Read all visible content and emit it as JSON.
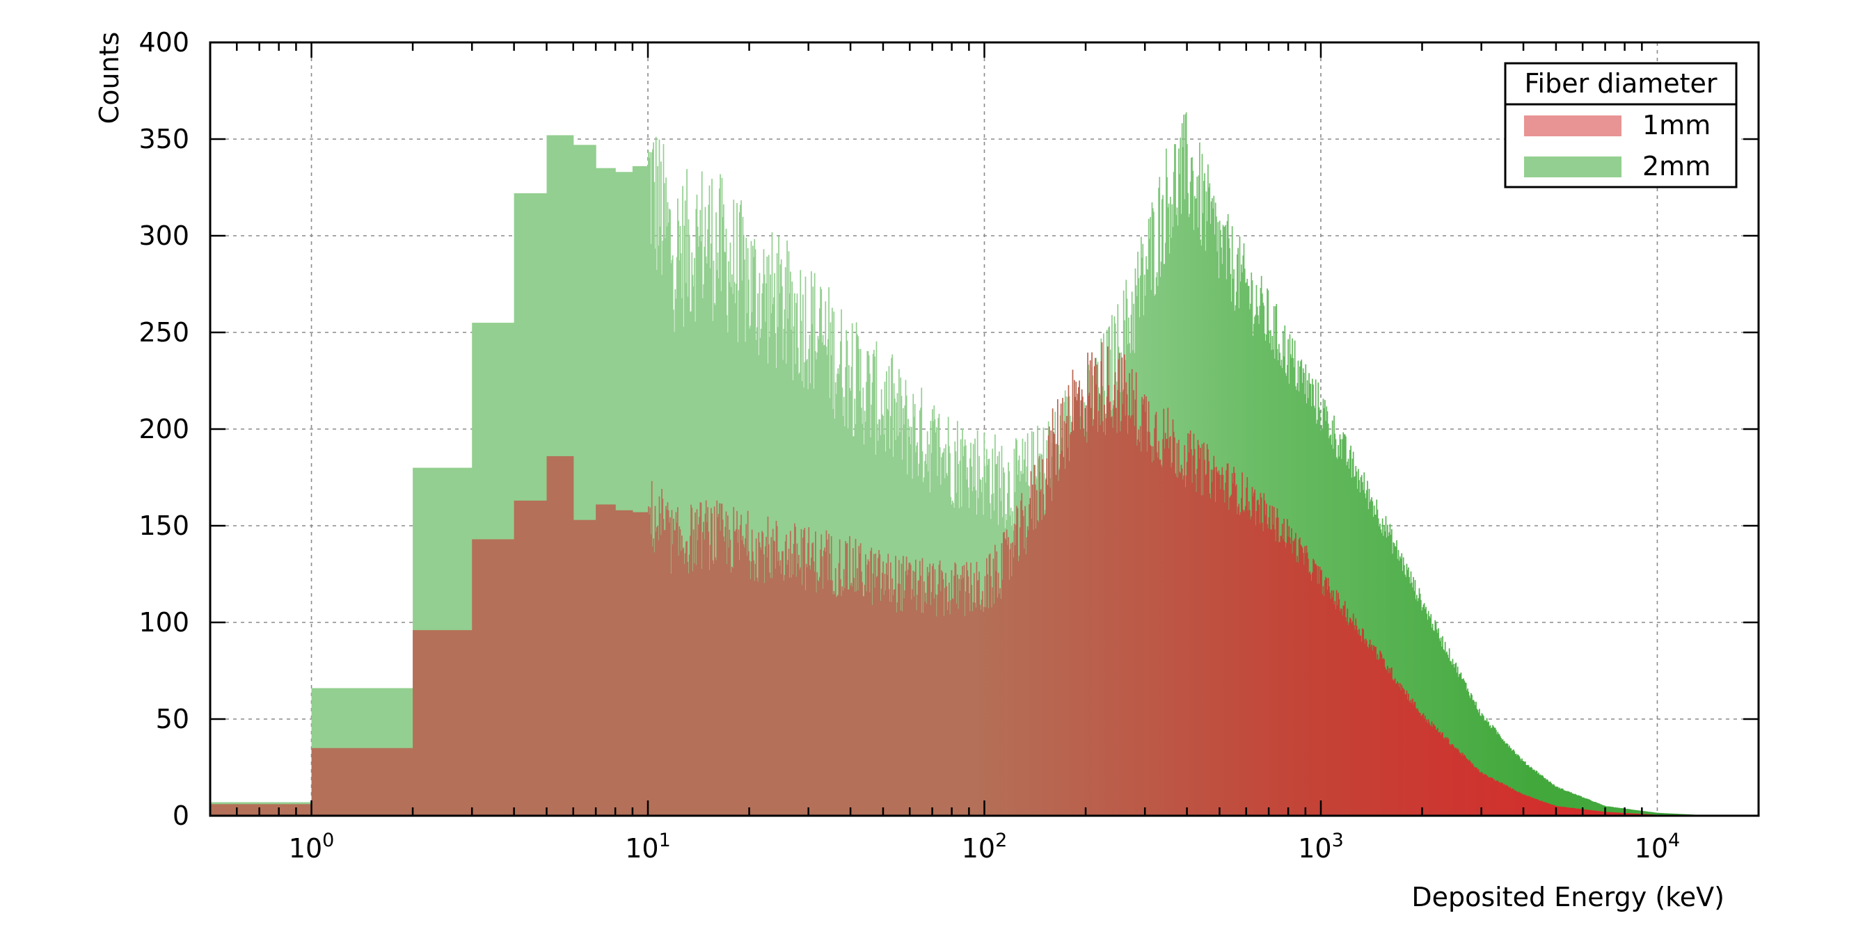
{
  "chart_data": {
    "type": "bar",
    "title": "",
    "xlabel": "Deposited Energy (keV)",
    "ylabel": "Counts",
    "xscale": "log",
    "xlim": [
      0.5,
      20000
    ],
    "ylim": [
      0,
      400
    ],
    "grid": true,
    "legend": {
      "title": "Fiber diameter",
      "position": "top-right"
    },
    "y_ticks": [
      "0",
      "50",
      "100",
      "150",
      "200",
      "250",
      "300",
      "350",
      "400"
    ],
    "x_ticks": [
      {
        "base": "10",
        "exp": "0",
        "value": 1
      },
      {
        "base": "10",
        "exp": "1",
        "value": 10
      },
      {
        "base": "10",
        "exp": "2",
        "value": 100
      },
      {
        "base": "10",
        "exp": "3",
        "value": 1000
      },
      {
        "base": "10",
        "exp": "4",
        "value": 10000
      }
    ],
    "bin_width_keV": 1,
    "series": [
      {
        "name": "1mm",
        "color": "#e57373",
        "first_bins": [
          6,
          35,
          96,
          143,
          163,
          186,
          153,
          161,
          158,
          157
        ],
        "profile": [
          [
            10,
            157
          ],
          [
            12,
            141
          ],
          [
            15,
            146
          ],
          [
            20,
            140
          ],
          [
            30,
            133
          ],
          [
            40,
            128
          ],
          [
            50,
            122
          ],
          [
            70,
            117
          ],
          [
            100,
            117
          ],
          [
            120,
            135
          ],
          [
            150,
            175
          ],
          [
            180,
            210
          ],
          [
            220,
            222
          ],
          [
            250,
            220
          ],
          [
            300,
            205
          ],
          [
            400,
            185
          ],
          [
            600,
            165
          ],
          [
            800,
            145
          ],
          [
            1000,
            122
          ],
          [
            1500,
            82
          ],
          [
            2000,
            52
          ],
          [
            3000,
            22
          ],
          [
            4000,
            11
          ],
          [
            5000,
            5
          ],
          [
            7000,
            2
          ],
          [
            10000,
            0.5
          ],
          [
            15000,
            0
          ]
        ]
      },
      {
        "name": "2mm",
        "color": "#7cc47c",
        "first_bins": [
          7,
          66,
          180,
          255,
          322,
          352,
          347,
          335,
          333,
          336
        ],
        "profile": [
          [
            10,
            330
          ],
          [
            12,
            290
          ],
          [
            15,
            300
          ],
          [
            20,
            275
          ],
          [
            25,
            263
          ],
          [
            30,
            255
          ],
          [
            40,
            228
          ],
          [
            50,
            212
          ],
          [
            60,
            200
          ],
          [
            80,
            185
          ],
          [
            100,
            178
          ],
          [
            120,
            170
          ],
          [
            150,
            180
          ],
          [
            200,
            205
          ],
          [
            250,
            240
          ],
          [
            300,
            280
          ],
          [
            350,
            320
          ],
          [
            400,
            335
          ],
          [
            450,
            315
          ],
          [
            500,
            295
          ],
          [
            700,
            255
          ],
          [
            1000,
            210
          ],
          [
            1500,
            155
          ],
          [
            2000,
            110
          ],
          [
            3000,
            52
          ],
          [
            4000,
            28
          ],
          [
            5000,
            15
          ],
          [
            7000,
            5
          ],
          [
            10000,
            1.5
          ],
          [
            15000,
            0
          ]
        ]
      }
    ]
  }
}
